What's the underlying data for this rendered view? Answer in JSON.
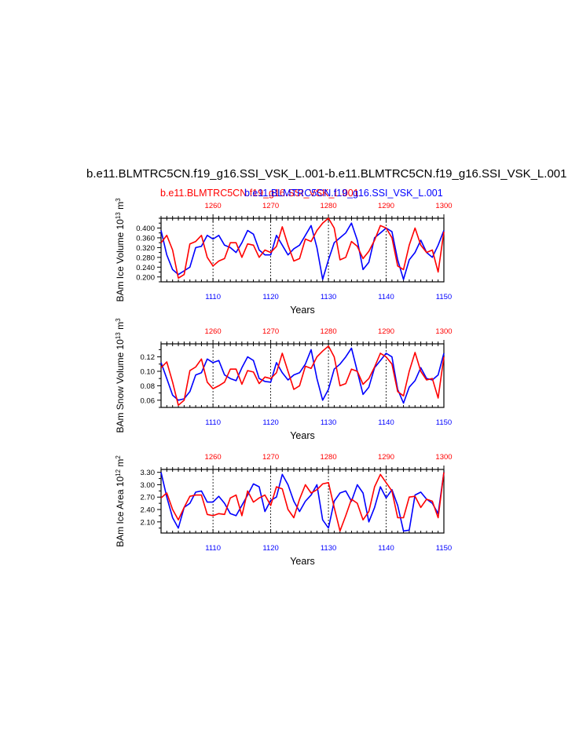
{
  "title": "b.e11.BLMTRC5CN.f19_g16.SSI_VSK_L.001-b.e11.BLMTRC5CN.f19_g16.SSI_VSK_L.001",
  "subtitles": {
    "red": "b.e11.BLMTRC5CN.f19_g16.SSI_VSK_L.001",
    "blue": "b.e11.BLMTRC5CN.f19_g16.SSI_VSK_L.001"
  },
  "colors": {
    "blue": "#0000ff",
    "red": "#ff0000",
    "axis": "#000000",
    "grid": "#000000"
  },
  "chart_data": [
    {
      "type": "line",
      "ylabel": "BAm Ice Volume 10^13 m^3",
      "xlabel": "Years",
      "xlim_bottom": [
        1101,
        1150
      ],
      "xlim_top": [
        1251,
        1300
      ],
      "ylim": [
        0.18,
        0.44
      ],
      "yticks": [
        "0.200",
        "0.240",
        "0.280",
        "0.320",
        "0.360",
        "0.400"
      ],
      "xticks_bottom": [
        "1110",
        "1120",
        "1130",
        "1140",
        "1150"
      ],
      "xticks_top": [
        "1260",
        "1270",
        "1280",
        "1290",
        "1300"
      ],
      "grid": "vertical dashed at top-axis ticks",
      "series": [
        {
          "color": "blue",
          "x0": 1101,
          "values": [
            0.39,
            0.29,
            0.23,
            0.21,
            0.225,
            0.24,
            0.32,
            0.325,
            0.37,
            0.355,
            0.37,
            0.33,
            0.32,
            0.3,
            0.34,
            0.39,
            0.375,
            0.31,
            0.29,
            0.29,
            0.37,
            0.33,
            0.29,
            0.315,
            0.33,
            0.37,
            0.41,
            0.32,
            0.19,
            0.27,
            0.34,
            0.36,
            0.38,
            0.42,
            0.35,
            0.23,
            0.26,
            0.36,
            0.38,
            0.4,
            0.385,
            0.27,
            0.19,
            0.27,
            0.3,
            0.35,
            0.3,
            0.28,
            0.33,
            0.39
          ]
        },
        {
          "color": "red",
          "x0": 1251,
          "values": [
            0.34,
            0.37,
            0.31,
            0.195,
            0.21,
            0.335,
            0.345,
            0.37,
            0.28,
            0.245,
            0.265,
            0.275,
            0.34,
            0.34,
            0.28,
            0.335,
            0.33,
            0.28,
            0.31,
            0.3,
            0.325,
            0.405,
            0.33,
            0.265,
            0.275,
            0.355,
            0.345,
            0.39,
            0.42,
            0.44,
            0.4,
            0.27,
            0.28,
            0.345,
            0.325,
            0.275,
            0.305,
            0.35,
            0.41,
            0.4,
            0.36,
            0.245,
            0.23,
            0.33,
            0.4,
            0.33,
            0.3,
            0.31,
            0.22,
            0.385
          ]
        }
      ]
    },
    {
      "type": "line",
      "ylabel": "BAm Snow Volume 10^13 m^3",
      "xlabel": "Years",
      "xlim_bottom": [
        1101,
        1150
      ],
      "xlim_top": [
        1251,
        1300
      ],
      "ylim": [
        0.05,
        0.138
      ],
      "yticks": [
        "0.06",
        "0.08",
        "0.10",
        "0.12"
      ],
      "xticks_bottom": [
        "1110",
        "1120",
        "1130",
        "1140",
        "1150"
      ],
      "xticks_top": [
        "1260",
        "1270",
        "1280",
        "1290",
        "1300"
      ],
      "grid": "vertical dashed at top-axis ticks",
      "series": [
        {
          "color": "blue",
          "x0": 1101,
          "values": [
            0.112,
            0.09,
            0.067,
            0.06,
            0.062,
            0.072,
            0.095,
            0.098,
            0.117,
            0.112,
            0.115,
            0.095,
            0.09,
            0.087,
            0.105,
            0.12,
            0.115,
            0.09,
            0.086,
            0.085,
            0.112,
            0.098,
            0.088,
            0.095,
            0.098,
            0.11,
            0.13,
            0.09,
            0.06,
            0.075,
            0.103,
            0.11,
            0.12,
            0.132,
            0.1,
            0.068,
            0.078,
            0.105,
            0.115,
            0.125,
            0.12,
            0.075,
            0.056,
            0.078,
            0.087,
            0.105,
            0.09,
            0.088,
            0.095,
            0.125
          ]
        },
        {
          "color": "red",
          "x0": 1251,
          "values": [
            0.105,
            0.113,
            0.085,
            0.053,
            0.06,
            0.101,
            0.106,
            0.117,
            0.085,
            0.076,
            0.08,
            0.085,
            0.103,
            0.103,
            0.082,
            0.101,
            0.099,
            0.083,
            0.092,
            0.09,
            0.098,
            0.125,
            0.1,
            0.075,
            0.08,
            0.107,
            0.104,
            0.12,
            0.128,
            0.135,
            0.12,
            0.08,
            0.083,
            0.103,
            0.1,
            0.082,
            0.09,
            0.106,
            0.125,
            0.12,
            0.11,
            0.072,
            0.066,
            0.1,
            0.126,
            0.1,
            0.088,
            0.09,
            0.063,
            0.12
          ]
        }
      ]
    },
    {
      "type": "line",
      "ylabel": "BAm Ice Area 10^12 m^2",
      "xlabel": "Years",
      "xlim_bottom": [
        1101,
        1150
      ],
      "xlim_top": [
        1251,
        1300
      ],
      "ylim": [
        1.83,
        3.37
      ],
      "yticks": [
        "2.10",
        "2.40",
        "2.70",
        "3.00",
        "3.30"
      ],
      "xticks_bottom": [
        "1110",
        "1120",
        "1130",
        "1140",
        "1150"
      ],
      "xticks_top": [
        "1260",
        "1270",
        "1280",
        "1290",
        "1300"
      ],
      "grid": "vertical dashed at top-axis ticks",
      "series": [
        {
          "color": "blue",
          "x0": 1101,
          "values": [
            3.3,
            2.7,
            2.2,
            1.95,
            2.45,
            2.55,
            2.82,
            2.85,
            2.58,
            2.58,
            2.72,
            2.55,
            2.3,
            2.25,
            2.5,
            2.75,
            3.02,
            2.95,
            2.35,
            2.62,
            2.7,
            3.25,
            3.0,
            2.6,
            2.35,
            2.6,
            2.75,
            3.0,
            2.15,
            1.95,
            2.6,
            2.8,
            2.85,
            2.6,
            3.0,
            2.8,
            2.1,
            2.45,
            2.95,
            2.68,
            2.88,
            2.5,
            1.88,
            1.9,
            2.75,
            2.82,
            2.65,
            2.55,
            2.3,
            3.3
          ]
        },
        {
          "color": "red",
          "x0": 1251,
          "values": [
            2.68,
            2.8,
            2.4,
            2.15,
            2.45,
            2.72,
            2.75,
            2.75,
            2.28,
            2.25,
            2.3,
            2.28,
            2.68,
            2.75,
            2.25,
            2.85,
            2.58,
            2.68,
            2.75,
            2.5,
            2.95,
            2.9,
            2.4,
            2.2,
            2.65,
            3.0,
            2.8,
            2.88,
            3.02,
            3.05,
            2.45,
            1.88,
            2.25,
            2.65,
            2.55,
            2.15,
            2.35,
            2.95,
            3.25,
            3.05,
            2.85,
            2.2,
            2.2,
            2.7,
            2.72,
            2.45,
            2.65,
            2.6,
            2.2,
            3.3
          ]
        }
      ]
    }
  ]
}
